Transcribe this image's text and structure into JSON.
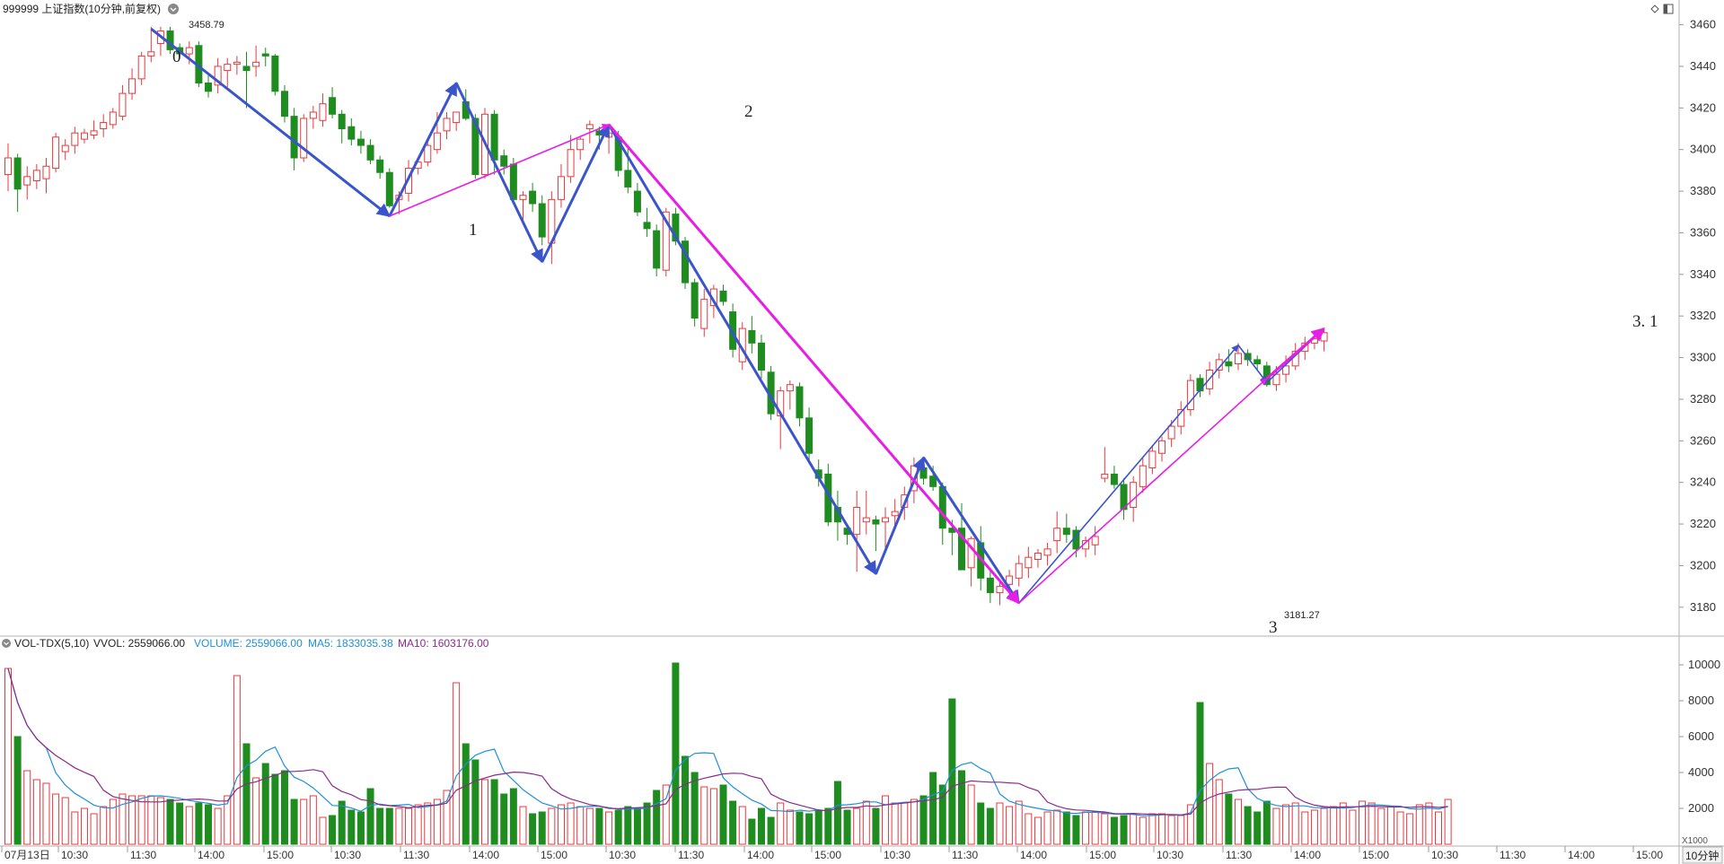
{
  "header": {
    "title": "999999 上证指数(10分钟,前复权)",
    "menu_icon": "chevron-down-icon",
    "right_icons": [
      "diamond-icon",
      "panel-toggle-icon"
    ]
  },
  "volume_header": {
    "indicator": "VOL-TDX(5,10)",
    "vvol": "VVOL: 2559066.00",
    "volume": "VOLUME: 2559066.00",
    "ma5": "MA5: 1833035.38",
    "ma10": "MA10: 1603176.00"
  },
  "colors": {
    "up": "#e8383d",
    "down": "#1f8c1f",
    "wave_blue": "#3a55cc",
    "wave_magenta": "#e61ee6",
    "ma5": "#1e90d8",
    "ma10": "#8a2a8a",
    "grid": "#e6e6e6",
    "axis": "#999999"
  },
  "annotations": {
    "high_label": "3458.79",
    "low_label": "3181.27",
    "wave_labels": [
      "0",
      "1",
      "2",
      "3",
      "3. 1"
    ]
  },
  "footer": {
    "period_button": "10分钟",
    "scale_unit": "X1000"
  },
  "chart_data": [
    {
      "type": "candlestick",
      "title": "999999 上证指数(10分钟,前复权)",
      "ylim": [
        3170,
        3465
      ],
      "yticks": [
        3180,
        3200,
        3220,
        3240,
        3260,
        3280,
        3300,
        3320,
        3340,
        3360,
        3380,
        3400,
        3420,
        3440,
        3460
      ],
      "ytick_labels": [
        "3180",
        "3200",
        "3220",
        "3240",
        "3260",
        "3280",
        "3300",
        "3320",
        "3340",
        "3360",
        "3380",
        "3400",
        "3420",
        "3440",
        "3460"
      ],
      "x_labels": [
        "07月13日",
        "10:30",
        "11:30",
        "14:00",
        "15:00",
        "10:30",
        "11:30",
        "14:00",
        "15:00",
        "10:30",
        "11:30",
        "14:00",
        "15:00",
        "10:30",
        "11:30",
        "14:00",
        "15:00",
        "10:30",
        "11:30",
        "14:00",
        "15:00",
        "10:30",
        "11:30",
        "14:00",
        "15:00"
      ],
      "ohlc": [
        [
          3388,
          3403,
          3380,
          3396
        ],
        [
          3396,
          3398,
          3370,
          3381
        ],
        [
          3383,
          3392,
          3376,
          3387
        ],
        [
          3385,
          3393,
          3381,
          3390
        ],
        [
          3386,
          3396,
          3379,
          3392
        ],
        [
          3391,
          3408,
          3389,
          3406
        ],
        [
          3399,
          3405,
          3395,
          3402
        ],
        [
          3402,
          3411,
          3398,
          3408
        ],
        [
          3405,
          3410,
          3403,
          3408
        ],
        [
          3407,
          3414,
          3405,
          3409
        ],
        [
          3410,
          3417,
          3406,
          3413
        ],
        [
          3412,
          3420,
          3410,
          3418
        ],
        [
          3416,
          3431,
          3414,
          3427
        ],
        [
          3427,
          3439,
          3424,
          3434
        ],
        [
          3434,
          3447,
          3431,
          3445
        ],
        [
          3445,
          3459,
          3442,
          3447
        ],
        [
          3451,
          3459,
          3445,
          3457
        ],
        [
          3457,
          3459,
          3446,
          3448
        ],
        [
          3449,
          3451,
          3445,
          3446
        ],
        [
          3446,
          3452,
          3441,
          3449
        ],
        [
          3450,
          3452,
          3430,
          3432
        ],
        [
          3432,
          3436,
          3425,
          3428
        ],
        [
          3431,
          3444,
          3427,
          3440
        ],
        [
          3438,
          3444,
          3430,
          3441
        ],
        [
          3441,
          3445,
          3436,
          3442
        ],
        [
          3440,
          3447,
          3420,
          3438
        ],
        [
          3440,
          3450,
          3435,
          3442
        ],
        [
          3446,
          3449,
          3440,
          3445
        ],
        [
          3445,
          3446,
          3426,
          3428
        ],
        [
          3428,
          3431,
          3413,
          3416
        ],
        [
          3416,
          3420,
          3390,
          3396
        ],
        [
          3396,
          3417,
          3394,
          3415
        ],
        [
          3415,
          3421,
          3410,
          3418
        ],
        [
          3414,
          3427,
          3411,
          3422
        ],
        [
          3425,
          3430,
          3415,
          3417
        ],
        [
          3417,
          3419,
          3403,
          3410
        ],
        [
          3411,
          3415,
          3402,
          3405
        ],
        [
          3405,
          3409,
          3398,
          3402
        ],
        [
          3402,
          3405,
          3393,
          3395
        ],
        [
          3395,
          3397,
          3386,
          3389
        ],
        [
          3389,
          3391,
          3372,
          3373
        ],
        [
          3376,
          3380,
          3369,
          3378
        ],
        [
          3379,
          3395,
          3375,
          3391
        ],
        [
          3391,
          3396,
          3388,
          3394
        ],
        [
          3394,
          3405,
          3392,
          3402
        ],
        [
          3400,
          3418,
          3398,
          3408
        ],
        [
          3409,
          3418,
          3405,
          3415
        ],
        [
          3413,
          3418,
          3409,
          3418
        ],
        [
          3423,
          3429,
          3414,
          3415
        ],
        [
          3415,
          3417,
          3386,
          3388
        ],
        [
          3388,
          3420,
          3386,
          3417
        ],
        [
          3417,
          3419,
          3388,
          3395
        ],
        [
          3397,
          3400,
          3388,
          3392
        ],
        [
          3393,
          3396,
          3375,
          3376
        ],
        [
          3376,
          3380,
          3366,
          3378
        ],
        [
          3380,
          3384,
          3370,
          3374
        ],
        [
          3374,
          3378,
          3354,
          3358
        ],
        [
          3355,
          3380,
          3345,
          3376
        ],
        [
          3376,
          3393,
          3372,
          3387
        ],
        [
          3387,
          3407,
          3384,
          3400
        ],
        [
          3400,
          3406,
          3395,
          3405
        ],
        [
          3410,
          3414,
          3403,
          3412
        ],
        [
          3409,
          3411,
          3400,
          3407
        ],
        [
          3406,
          3411,
          3398,
          3408
        ],
        [
          3406,
          3409,
          3387,
          3390
        ],
        [
          3390,
          3401,
          3379,
          3382
        ],
        [
          3380,
          3384,
          3368,
          3370
        ],
        [
          3365,
          3372,
          3358,
          3362
        ],
        [
          3361,
          3364,
          3339,
          3343
        ],
        [
          3342,
          3372,
          3339,
          3370
        ],
        [
          3369,
          3372,
          3354,
          3356
        ],
        [
          3356,
          3358,
          3333,
          3336
        ],
        [
          3336,
          3338,
          3315,
          3319
        ],
        [
          3314,
          3333,
          3310,
          3328
        ],
        [
          3325,
          3335,
          3319,
          3333
        ],
        [
          3332,
          3335,
          3325,
          3327
        ],
        [
          3322,
          3326,
          3300,
          3304
        ],
        [
          3298,
          3317,
          3294,
          3314
        ],
        [
          3313,
          3320,
          3302,
          3307
        ],
        [
          3307,
          3311,
          3290,
          3294
        ],
        [
          3293,
          3296,
          3270,
          3273
        ],
        [
          3272,
          3286,
          3256,
          3284
        ],
        [
          3284,
          3289,
          3275,
          3287
        ],
        [
          3286,
          3288,
          3267,
          3271
        ],
        [
          3271,
          3276,
          3249,
          3254
        ],
        [
          3246,
          3251,
          3238,
          3242
        ],
        [
          3244,
          3249,
          3219,
          3221
        ],
        [
          3228,
          3236,
          3212,
          3221
        ],
        [
          3218,
          3220,
          3210,
          3215
        ],
        [
          3215,
          3236,
          3197,
          3228
        ],
        [
          3221,
          3236,
          3215,
          3223
        ],
        [
          3222,
          3224,
          3207,
          3220
        ],
        [
          3221,
          3228,
          3208,
          3223
        ],
        [
          3224,
          3232,
          3218,
          3226
        ],
        [
          3228,
          3238,
          3222,
          3234
        ],
        [
          3236,
          3252,
          3230,
          3248
        ],
        [
          3247,
          3250,
          3239,
          3242
        ],
        [
          3243,
          3248,
          3236,
          3238
        ],
        [
          3238,
          3240,
          3210,
          3218
        ],
        [
          3218,
          3222,
          3205,
          3216
        ],
        [
          3218,
          3230,
          3198,
          3198
        ],
        [
          3199,
          3214,
          3190,
          3213
        ],
        [
          3211,
          3219,
          3188,
          3194
        ],
        [
          3194,
          3199,
          3182,
          3187
        ],
        [
          3187,
          3193,
          3181,
          3190
        ],
        [
          3191,
          3198,
          3184,
          3195
        ],
        [
          3194,
          3205,
          3190,
          3201
        ],
        [
          3199,
          3209,
          3194,
          3204
        ],
        [
          3203,
          3208,
          3199,
          3206
        ],
        [
          3205,
          3211,
          3200,
          3208
        ],
        [
          3212,
          3226,
          3206,
          3218
        ],
        [
          3218,
          3225,
          3211,
          3215
        ],
        [
          3217,
          3219,
          3204,
          3208
        ],
        [
          3208,
          3214,
          3204,
          3212
        ],
        [
          3210,
          3219,
          3205,
          3214
        ],
        [
          3242,
          3257,
          3240,
          3244
        ],
        [
          3244,
          3248,
          3237,
          3239
        ],
        [
          3239,
          3242,
          3222,
          3227
        ],
        [
          3228,
          3243,
          3221,
          3240
        ],
        [
          3238,
          3252,
          3235,
          3248
        ],
        [
          3247,
          3258,
          3244,
          3255
        ],
        [
          3254,
          3262,
          3250,
          3260
        ],
        [
          3261,
          3270,
          3257,
          3267
        ],
        [
          3267,
          3279,
          3263,
          3275
        ],
        [
          3275,
          3292,
          3272,
          3289
        ],
        [
          3290,
          3292,
          3281,
          3284
        ],
        [
          3285,
          3298,
          3282,
          3294
        ],
        [
          3294,
          3302,
          3290,
          3299
        ],
        [
          3298,
          3304,
          3293,
          3296
        ],
        [
          3297,
          3307,
          3294,
          3302
        ],
        [
          3302,
          3304,
          3296,
          3299
        ],
        [
          3299,
          3301,
          3294,
          3297
        ],
        [
          3296,
          3298,
          3286,
          3287
        ],
        [
          3287,
          3296,
          3284,
          3292
        ],
        [
          3292,
          3301,
          3288,
          3296
        ],
        [
          3296,
          3307,
          3294,
          3303
        ],
        [
          3303,
          3310,
          3299,
          3307
        ],
        [
          3307,
          3312,
          3304,
          3309
        ],
        [
          3308,
          3314,
          3303,
          3312
        ]
      ],
      "waves_blue": [
        [
          3458,
          3368
        ],
        [
          3368,
          3432
        ],
        [
          3432,
          3346
        ],
        [
          3346,
          3412
        ],
        [
          3412,
          3196
        ],
        [
          3196,
          3252
        ],
        [
          3252,
          3182
        ],
        [
          3182,
          3306
        ],
        [
          3306,
          3288
        ],
        [
          3288,
          3314
        ]
      ],
      "waves_blue_idx": [
        [
          15,
          40
        ],
        [
          40,
          47
        ],
        [
          47,
          56
        ],
        [
          56,
          63
        ],
        [
          63,
          91
        ],
        [
          91,
          96
        ],
        [
          96,
          106
        ],
        [
          106,
          129
        ],
        [
          129,
          132
        ],
        [
          132,
          138
        ]
      ],
      "waves_magenta": [
        [
          3368,
          3412
        ],
        [
          3412,
          3182
        ],
        [
          3182,
          3290
        ],
        [
          3290,
          3314
        ]
      ],
      "waves_magenta_idx": [
        [
          40,
          63
        ],
        [
          63,
          106
        ],
        [
          106,
          132
        ],
        [
          132,
          138
        ]
      ]
    },
    {
      "type": "bar",
      "title": "VOL-TDX(5,10)",
      "ylim": [
        0,
        10500
      ],
      "yticks": [
        2000,
        4000,
        6000,
        8000,
        10000
      ],
      "ytick_labels": [
        "2000",
        "4000",
        "6000",
        "8000",
        "10000"
      ],
      "unit": "X1000",
      "values": [
        9800,
        6000,
        4100,
        3600,
        3400,
        2800,
        2600,
        1800,
        2000,
        1700,
        2100,
        2500,
        2800,
        2700,
        2700,
        2700,
        2600,
        2500,
        2300,
        2100,
        2300,
        2200,
        2000,
        2700,
        9400,
        5600,
        3700,
        4500,
        3900,
        4100,
        2500,
        2500,
        2700,
        1500,
        1600,
        2400,
        1900,
        1800,
        3100,
        2000,
        2000,
        2000,
        2000,
        2200,
        2300,
        2500,
        3000,
        9000,
        5600,
        4700,
        3600,
        3600,
        2800,
        3100,
        2100,
        1700,
        1800,
        2000,
        2200,
        2300,
        2100,
        2000,
        2000,
        1800,
        1900,
        2100,
        2000,
        2300,
        3000,
        3300,
        10100,
        4900,
        4000,
        3200,
        3100,
        3300,
        2400,
        2100,
        1400,
        2000,
        1500,
        2300,
        1900,
        1800,
        1700,
        1900,
        2000,
        3500,
        1900,
        2000,
        2400,
        2000,
        2700,
        2300,
        2300,
        2500,
        2700,
        4000,
        3300,
        8100,
        4100,
        3300,
        2300,
        2000,
        2300,
        2100,
        2400,
        1700,
        1500,
        1800,
        1900,
        1800,
        1600,
        1800,
        1800,
        1700,
        1500,
        1600,
        1700,
        1500,
        1700,
        1700,
        1600,
        1600,
        2200,
        7900,
        4500,
        3600,
        2800,
        2500,
        2100,
        1800,
        2400,
        2000,
        2200,
        2300,
        1800,
        1900,
        2000,
        2100,
        2300,
        1900,
        2400,
        2300,
        2000,
        2100,
        1800,
        1700,
        2200,
        2300,
        1800,
        2500
      ]
    }
  ]
}
